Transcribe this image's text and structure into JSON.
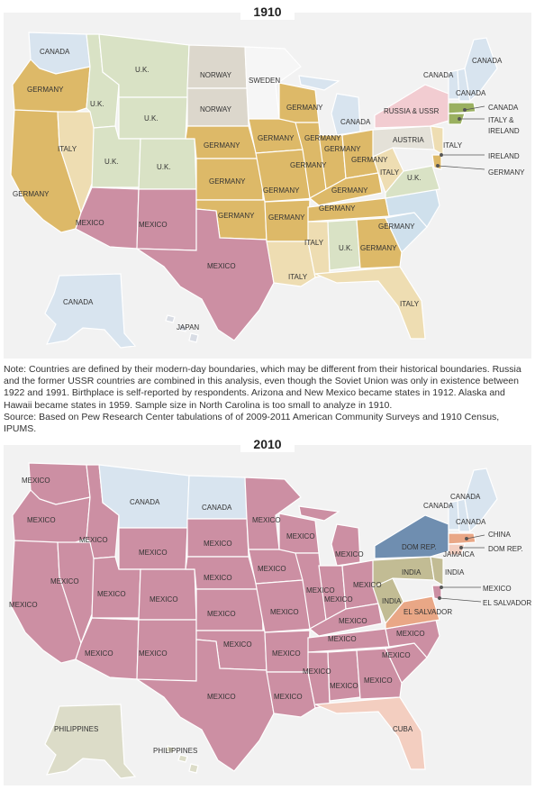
{
  "map_1910": {
    "year": "1910",
    "labels": {
      "canada_nw": "CANADA",
      "uk_mt": "U.K.",
      "norway_nd": "NORWAY",
      "sweden_mn": "SWEDEN",
      "canada_vt": "CANADA",
      "canada_me": "CANADA",
      "canada_nh": "CANADA",
      "germany_or": "GERMANY",
      "uk_id": "U.K.",
      "uk_wy": "U.K.",
      "norway_sd": "NORWAY",
      "germany_wi": "GERMANY",
      "canada_mi": "CANADA",
      "russia_ny": "RUSSIA & USSR",
      "canada_callout": "CANADA",
      "italy_ireland_callout": "ITALY &\nIRELAND",
      "italy_nv": "ITALY",
      "uk_ut": "U.K.",
      "uk_co": "U.K.",
      "germany_ne": "GERMANY",
      "germany_ia": "GERMANY",
      "germany_il": "GERMANY",
      "germany_oh": "GERMANY",
      "austria_pa": "AUSTRIA",
      "italy_nj": "ITALY",
      "ireland_callout": "IRELAND",
      "germany_ca": "GERMANY",
      "germany_ks": "GERMANY",
      "germany_mo": "GERMANY",
      "germany_in": "GERMANY",
      "germany_ky": "GERMANY",
      "italy_wv": "ITALY",
      "uk_va": "U.K.",
      "germany_callout": "GERMANY",
      "mexico_az": "MEXICO",
      "mexico_nm": "MEXICO",
      "germany_ok": "GERMANY",
      "germany_ar": "GERMANY",
      "germany_tn": "GERMANY",
      "germany_nc": "GERMANY",
      "germany_ga": "GERMANY",
      "italy_ms": "ITALY",
      "uk_al": "U.K.",
      "mexico_tx": "MEXICO",
      "italy_la": "ITALY",
      "italy_fl": "ITALY",
      "canada_ak": "CANADA",
      "japan_hi": "JAPAN"
    }
  },
  "note": {
    "text": "Note: Countries are defined by their modern-day boundaries, which may be different from their historical boundaries. Russia and the former USSR countries are combined in this analysis, even though the Soviet Union was only in existence between 1922 and 1991. Birthplace is self-reported by respondents. Arizona and New Mexico became states in 1912. Alaska and Hawaii became states in 1959. Sample size in North Carolina is too small to analyze in 1910.",
    "source": "Source: Based on Pew Research Center tabulations of of 2009-2011 American Community Surveys and 1910 Census, IPUMS."
  },
  "map_2010": {
    "year": "2010",
    "labels": {
      "mexico_wa": "MEXICO",
      "canada_mt": "CANADA",
      "canada_nd": "CANADA",
      "mexico_mn": "MEXICO",
      "canada_ny_n": "CANADA",
      "canada_me": "CANADA",
      "canada_vt": "CANADA",
      "mexico_or": "MEXICO",
      "mexico_id": "MEXICO",
      "mexico_wy": "MEXICO",
      "mexico_sd": "MEXICO",
      "mexico_wi": "MEXICO",
      "mexico_mi": "MEXICO",
      "dom_rep_ny": "DOM REP.",
      "china_callout": "CHINA",
      "dom_rep_callout": "DOM REP.",
      "jamaica_ct": "JAMAICA",
      "mexico_nv": "MEXICO",
      "mexico_ut": "MEXICO",
      "mexico_co": "MEXICO",
      "mexico_ne": "MEXICO",
      "mexico_ia": "MEXICO",
      "mexico_il": "MEXICO",
      "mexico_in": "MEXICO",
      "mexico_oh": "MEXICO",
      "india_pa": "INDIA",
      "india_callout": "INDIA",
      "mexico_ca": "MEXICO",
      "mexico_ks": "MEXICO",
      "mexico_mo": "MEXICO",
      "mexico_ky": "MEXICO",
      "india_wv": "INDIA",
      "el_salvador_va": "EL SALVADOR",
      "mexico_callout": "MEXICO",
      "el_salvador_callout": "EL SALVADOR",
      "mexico_az": "MEXICO",
      "mexico_nm": "MEXICO",
      "mexico_ok": "MEXICO",
      "mexico_ar": "MEXICO",
      "mexico_tn": "MEXICO",
      "mexico_nc": "MEXICO",
      "mexico_sc": "MEXICO",
      "mexico_ms": "MEXICO",
      "mexico_al": "MEXICO",
      "mexico_ga": "MEXICO",
      "mexico_tx": "MEXICO",
      "mexico_la": "MEXICO",
      "cuba_fl": "CUBA",
      "philippines_ak": "PHILIPPINES",
      "philippines_hi": "PHILIPPINES"
    }
  }
}
